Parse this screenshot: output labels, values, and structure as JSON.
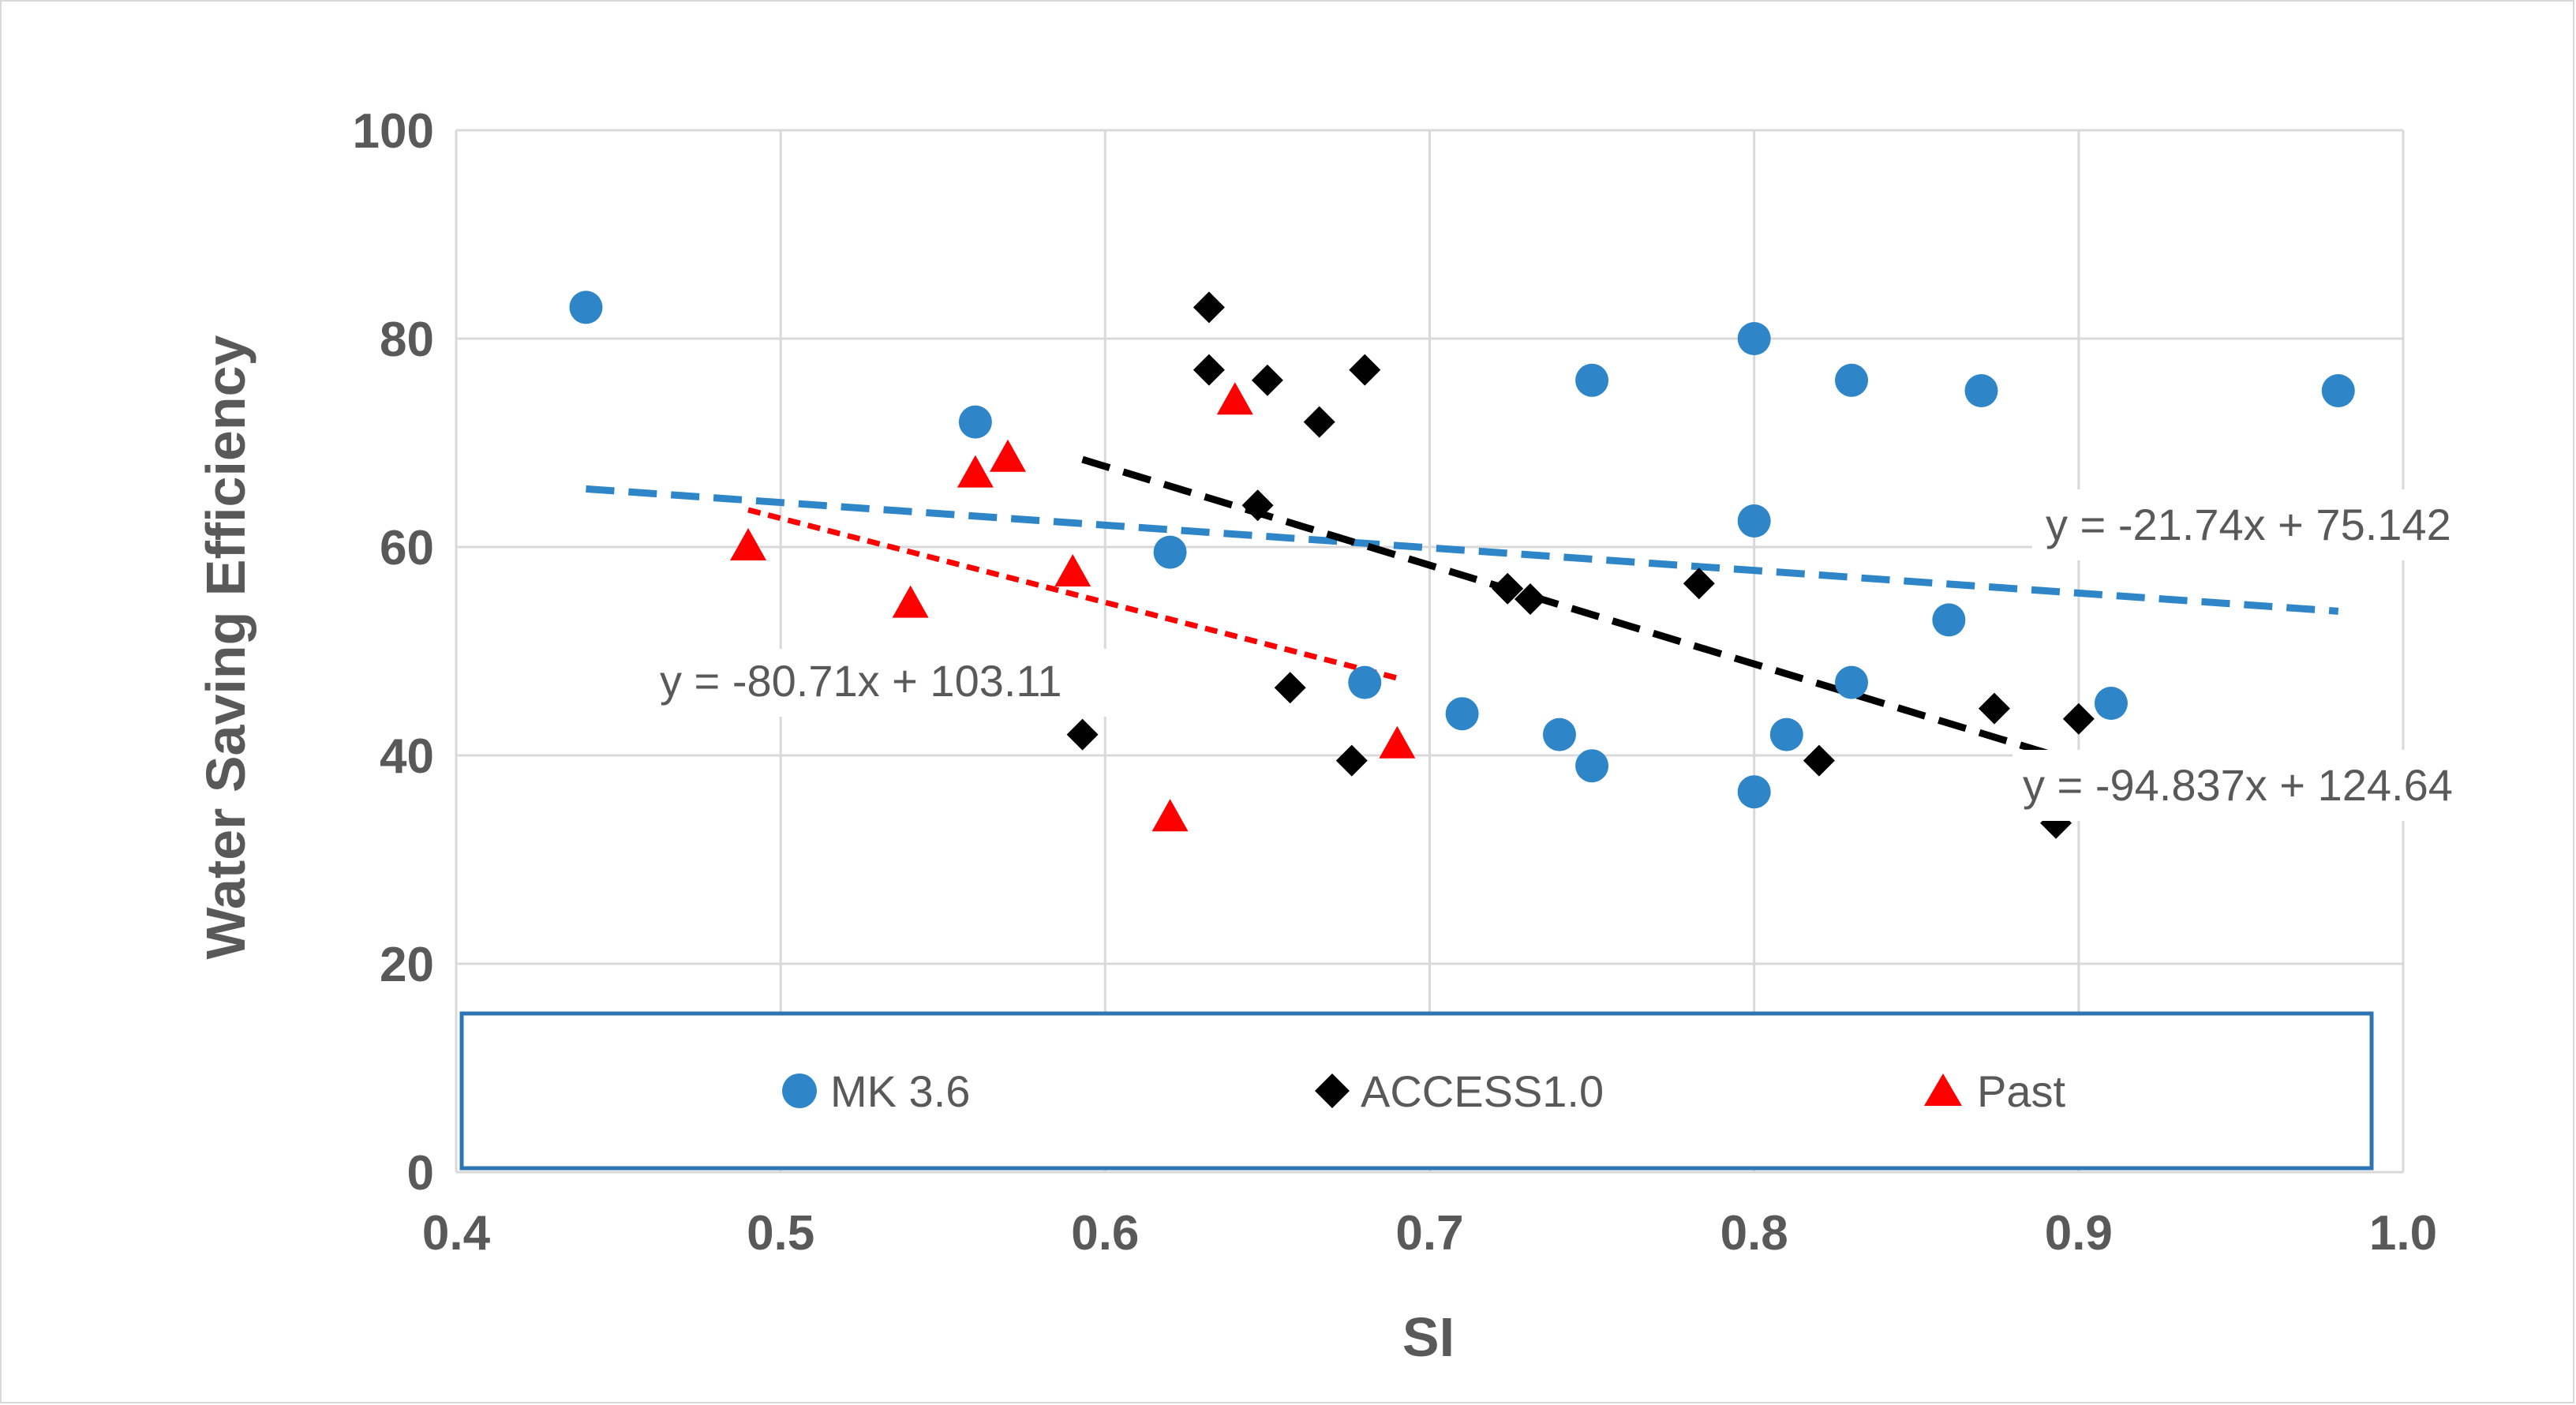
{
  "chart_data": {
    "type": "scatter",
    "title": "",
    "xlabel": "SI",
    "ylabel": "Water Saving Efficiency",
    "xlim": [
      0.4,
      1.0
    ],
    "ylim": [
      0,
      100
    ],
    "xticks": [
      0.4,
      0.5,
      0.6,
      0.7,
      0.8,
      0.9,
      1.0
    ],
    "xtick_labels": [
      "0.4",
      "0.5",
      "0.6",
      "0.7",
      "0.8",
      "0.9",
      "1.0"
    ],
    "yticks": [
      0,
      20,
      40,
      60,
      80,
      100
    ],
    "ytick_labels": [
      "0",
      "20",
      "40",
      "60",
      "80",
      "100"
    ],
    "grid": true,
    "legend_position": "bottom",
    "series": [
      {
        "name": "MK 3.6",
        "marker": "circle",
        "color": "#2e86c8",
        "x": [
          0.44,
          0.56,
          0.62,
          0.68,
          0.71,
          0.74,
          0.75,
          0.75,
          0.8,
          0.8,
          0.8,
          0.81,
          0.83,
          0.83,
          0.86,
          0.87,
          0.91,
          0.98
        ],
        "y": [
          83,
          72,
          59.5,
          47,
          44,
          42,
          76,
          39,
          80,
          62.5,
          36.5,
          42,
          76,
          47,
          53,
          75,
          45,
          75
        ],
        "trend": {
          "slope": -21.74,
          "intercept": 75.142,
          "x_range": [
            0.44,
            0.98
          ],
          "color": "#2e86c8",
          "label": "y = -21.74x + 75.142"
        }
      },
      {
        "name": "ACCESS1.0",
        "marker": "diamond",
        "color": "#000000",
        "x": [
          0.593,
          0.632,
          0.632,
          0.647,
          0.65,
          0.657,
          0.666,
          0.676,
          0.68,
          0.724,
          0.731,
          0.783,
          0.82,
          0.874,
          0.893,
          0.9
        ],
        "y": [
          42,
          83,
          77,
          64,
          76,
          46.5,
          72,
          39.5,
          77,
          56,
          55,
          56.5,
          39.5,
          44.5,
          33.5,
          43.5
        ],
        "trend": {
          "slope": -94.837,
          "intercept": 124.64,
          "x_range": [
            0.593,
            0.9
          ],
          "color": "#000000",
          "label": "y = -94.837x + 124.64"
        }
      },
      {
        "name": "Past",
        "marker": "triangle",
        "color": "#ff0000",
        "x": [
          0.49,
          0.54,
          0.56,
          0.57,
          0.59,
          0.62,
          0.64,
          0.69
        ],
        "y": [
          60,
          54.5,
          67,
          68.5,
          57.5,
          34,
          74,
          41
        ],
        "trend": {
          "slope": -80.71,
          "intercept": 103.11,
          "x_range": [
            0.49,
            0.69
          ],
          "color": "#ff0000",
          "label": "y = -80.71x + 103.11"
        }
      }
    ]
  }
}
